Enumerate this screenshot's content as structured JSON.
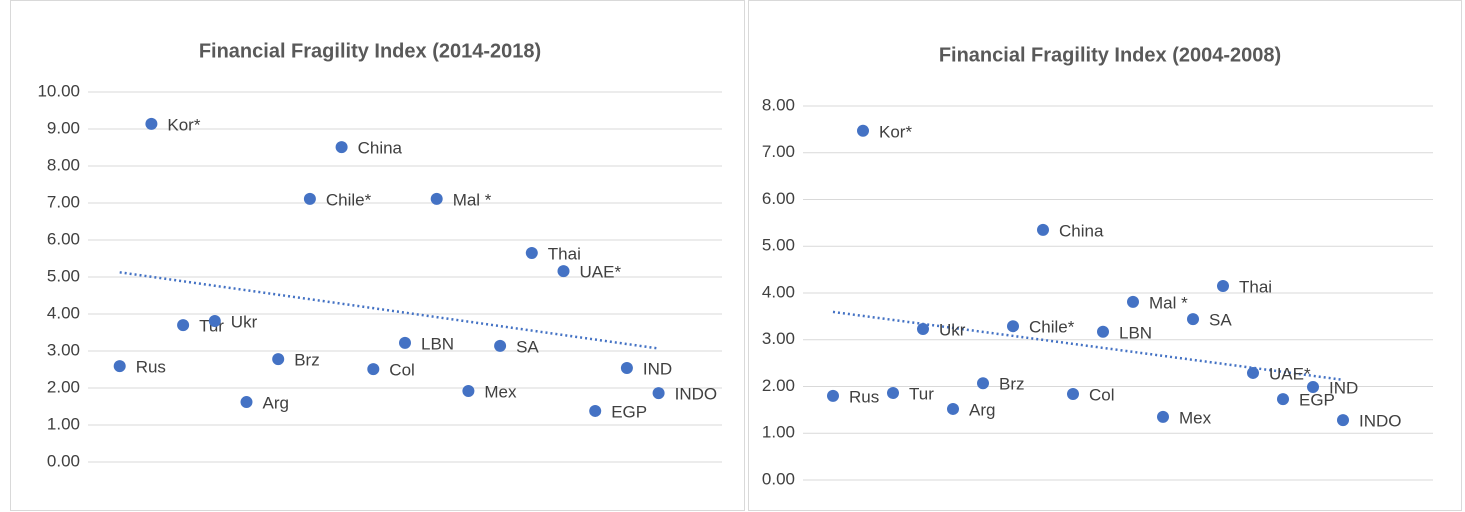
{
  "chart_data": [
    {
      "type": "scatter",
      "title": "Financial Fragility Index (2014-2018)",
      "x": [
        1,
        2,
        3,
        4,
        5,
        6,
        7,
        8,
        9,
        10,
        11,
        12,
        13,
        14,
        15,
        16,
        17,
        18
      ],
      "values": [
        2.59,
        9.14,
        3.7,
        3.81,
        1.62,
        2.78,
        7.11,
        8.51,
        2.51,
        3.22,
        7.11,
        1.92,
        3.14,
        5.65,
        5.16,
        1.38,
        2.54,
        1.86
      ],
      "point_labels": [
        "Rus",
        "Kor*",
        "Tur",
        "Ukr",
        "Arg",
        "Brz",
        "Chile*",
        "China",
        "Col",
        "LBN",
        "Mal *",
        "Mex",
        "SA",
        "Thai",
        "UAE*",
        "EGP",
        "IND",
        "INDO"
      ],
      "color": "#4472c4",
      "trendline": true,
      "grid": true,
      "xlim": [
        0,
        20
      ],
      "ylim": [
        0,
        10
      ],
      "yticks": [
        {
          "value": 0,
          "label": "0.00"
        },
        {
          "value": 1,
          "label": "1.00"
        },
        {
          "value": 2,
          "label": "2.00"
        },
        {
          "value": 3,
          "label": "3.00"
        },
        {
          "value": 4,
          "label": "4.00"
        },
        {
          "value": 5,
          "label": "5.00"
        },
        {
          "value": 6,
          "label": "6.00"
        },
        {
          "value": 7,
          "label": "7.00"
        },
        {
          "value": 8,
          "label": "8.00"
        },
        {
          "value": 9,
          "label": "9.00"
        },
        {
          "value": 10,
          "label": "10.00"
        }
      ]
    },
    {
      "type": "scatter",
      "title": "Financial Fragility Index (2004-2008)",
      "x": [
        1,
        2,
        3,
        4,
        5,
        6,
        7,
        8,
        9,
        10,
        11,
        12,
        13,
        14,
        15,
        16,
        17,
        18
      ],
      "values": [
        1.8,
        7.47,
        1.86,
        3.23,
        1.52,
        2.07,
        3.29,
        5.35,
        1.84,
        3.17,
        3.81,
        1.35,
        3.44,
        4.15,
        2.29,
        1.73,
        1.99,
        1.28
      ],
      "point_labels": [
        "Rus",
        "Kor*",
        "Tur",
        "Ukr",
        "Arg",
        "Brz",
        "Chile*",
        "China",
        "Col",
        "LBN",
        "Mal *",
        "Mex",
        "SA",
        "Thai",
        "UAE*",
        "EGP",
        "IND",
        "INDO"
      ],
      "color": "#4472c4",
      "trendline": true,
      "grid": true,
      "xlim": [
        0,
        21
      ],
      "ylim": [
        0,
        8
      ],
      "yticks": [
        {
          "value": 0,
          "label": "0.00"
        },
        {
          "value": 1,
          "label": "1.00"
        },
        {
          "value": 2,
          "label": "2.00"
        },
        {
          "value": 3,
          "label": "3.00"
        },
        {
          "value": 4,
          "label": "4.00"
        },
        {
          "value": 5,
          "label": "5.00"
        },
        {
          "value": 6,
          "label": "6.00"
        },
        {
          "value": 7,
          "label": "7.00"
        },
        {
          "value": 8,
          "label": "8.00"
        }
      ]
    }
  ]
}
